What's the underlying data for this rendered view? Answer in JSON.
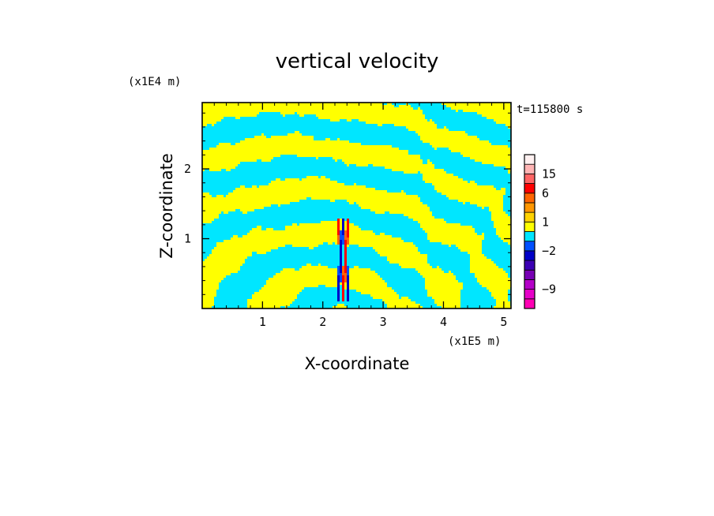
{
  "chart_data": {
    "type": "heatmap",
    "title": "vertical velocity",
    "xlabel": "X-coordinate",
    "ylabel": "Z-coordinate",
    "x_scale_label": "(x1E5 m)",
    "y_scale_label": "(x1E4 m)",
    "time_label": "t=115800 s",
    "xlim": [
      0,
      5.12
    ],
    "ylim": [
      0,
      2.95
    ],
    "x_ticks": [
      1,
      2,
      3,
      4,
      5
    ],
    "x_tick_labels": [
      "1",
      "2",
      "3",
      "4",
      "5"
    ],
    "y_ticks": [
      1,
      2
    ],
    "y_tick_labels": [
      "1",
      "2"
    ],
    "colorbar": {
      "labels": [
        {
          "text": "15",
          "level": 15
        },
        {
          "text": "6",
          "level": 6
        },
        {
          "text": "1",
          "level": 1
        },
        {
          "text": "−2",
          "level": -2
        },
        {
          "text": "−9",
          "level": -9
        }
      ],
      "bins": [
        {
          "color": "#ff00b4",
          "min": -20,
          "max": -12
        },
        {
          "color": "#e600c8",
          "min": -12,
          "max": -9
        },
        {
          "color": "#b400c8",
          "min": -9,
          "max": -6
        },
        {
          "color": "#7800b4",
          "min": -6,
          "max": -4
        },
        {
          "color": "#3c00b4",
          "min": -4,
          "max": -3
        },
        {
          "color": "#0000c8",
          "min": -3,
          "max": -2
        },
        {
          "color": "#0050ff",
          "min": -2,
          "max": -1
        },
        {
          "color": "#00e6ff",
          "min": -1,
          "max": 0
        },
        {
          "color": "#ffff00",
          "min": 0,
          "max": 1
        },
        {
          "color": "#ffd200",
          "min": 1,
          "max": 2
        },
        {
          "color": "#ff9600",
          "min": 2,
          "max": 4
        },
        {
          "color": "#ff6400",
          "min": 4,
          "max": 6
        },
        {
          "color": "#ff0000",
          "min": 6,
          "max": 10
        },
        {
          "color": "#ff6464",
          "min": 10,
          "max": 15
        },
        {
          "color": "#ffb4b4",
          "min": 15,
          "max": 20
        },
        {
          "color": "#fff0f0",
          "min": 20,
          "max": 30
        }
      ]
    },
    "field_colors": {
      "positive": "#ffff00",
      "negative": "#00e6ff",
      "strong_positive": "#ff0000",
      "mid_positive": "#ff6400",
      "strong_negative": "#0000c8",
      "mid_negative": "#0050ff"
    }
  }
}
